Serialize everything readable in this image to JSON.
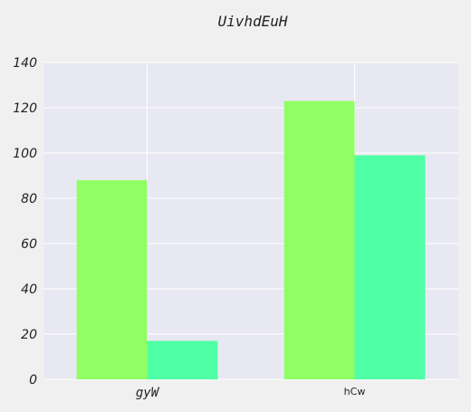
{
  "chart_data": {
    "type": "bar",
    "title": "UivhdEuH",
    "xlabel": "",
    "ylabel": "",
    "categories": [
      "gyW",
      "hCw"
    ],
    "series": [
      {
        "values": [
          88,
          123
        ],
        "color": "#90ff64"
      },
      {
        "values": [
          17,
          99
        ],
        "color": "#4effa6"
      }
    ],
    "ylim": [
      0,
      140
    ],
    "yticks": [
      0,
      20,
      40,
      60,
      80,
      100,
      120,
      140
    ],
    "grid": true,
    "legend": "none",
    "colors": {
      "page_background": "#f0f0f0",
      "plot_background": "#e8e8f2",
      "grid": "#ffffff"
    }
  }
}
